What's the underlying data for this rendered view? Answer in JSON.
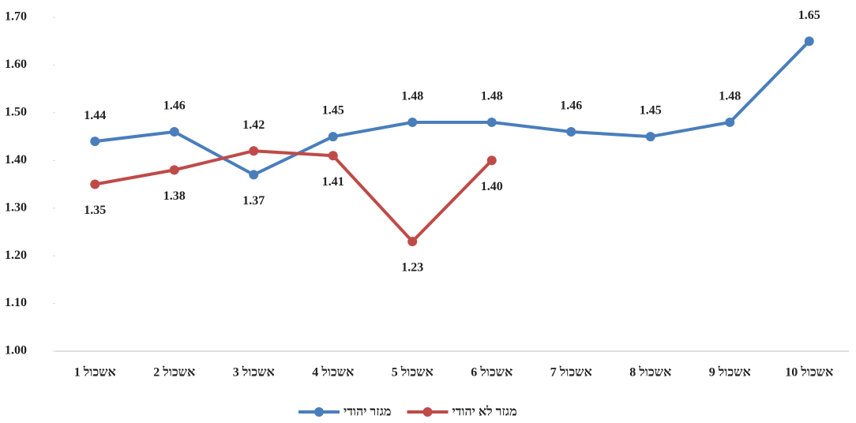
{
  "chart_data": {
    "type": "line",
    "categories": [
      "אשכול 1",
      "אשכול 2",
      "אשכול 3",
      "אשכול 4",
      "אשכול 5",
      "אשכול 6",
      "אשכול 7",
      "אשכול 8",
      "אשכול 9",
      "אשכול 10"
    ],
    "series": [
      {
        "name": "מגזר יהודי",
        "color": "#4a7ebb",
        "values": [
          1.44,
          1.46,
          1.37,
          1.45,
          1.48,
          1.48,
          1.46,
          1.45,
          1.48,
          1.65
        ]
      },
      {
        "name": "מגזר לא יהודי",
        "color": "#be4b48",
        "values": [
          1.35,
          1.38,
          1.42,
          1.41,
          1.23,
          1.4,
          null,
          null,
          null,
          null
        ]
      }
    ],
    "ylim": [
      1.0,
      1.7
    ],
    "yticks": [
      {
        "value": 1.0,
        "label": "1.00"
      },
      {
        "value": 1.1,
        "label": "1.10"
      },
      {
        "value": 1.2,
        "label": "1.20"
      },
      {
        "value": 1.3,
        "label": "1.30"
      },
      {
        "value": 1.4,
        "label": "1.40"
      },
      {
        "value": 1.5,
        "label": "1.50"
      },
      {
        "value": 1.6,
        "label": "1.60"
      },
      {
        "value": 1.7,
        "label": "1.70"
      }
    ],
    "value_labels": [
      [
        "1.44",
        "1.46",
        "1.37",
        "1.45",
        "1.48",
        "1.48",
        "1.46",
        "1.45",
        "1.48",
        "1.65"
      ],
      [
        "1.35",
        "1.38",
        "1.42",
        "1.41",
        "1.23",
        "1.40",
        null,
        null,
        null,
        null
      ]
    ],
    "grid": false
  }
}
